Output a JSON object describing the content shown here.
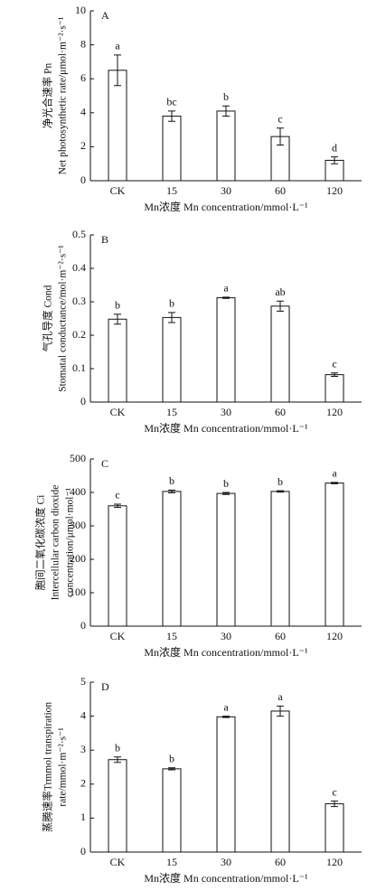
{
  "chart_data": [
    {
      "type": "bar",
      "panel": "A",
      "ylabel": [
        "净光合速率 Pn",
        "Net photosynthetic rate/μmol·m⁻²·s⁻¹"
      ],
      "xlabel": "Mn浓度 Mn concentration/mmol·L⁻¹",
      "categories": [
        "CK",
        "15",
        "30",
        "60",
        "120"
      ],
      "values": [
        6.5,
        3.8,
        4.1,
        2.6,
        1.2
      ],
      "errors": [
        0.9,
        0.3,
        0.3,
        0.5,
        0.2
      ],
      "letters": [
        "a",
        "bc",
        "b",
        "c",
        "d"
      ],
      "ylim": [
        0,
        10
      ],
      "yticks": [
        0,
        2,
        4,
        6,
        8,
        10
      ],
      "color": "#ffffff"
    },
    {
      "type": "bar",
      "panel": "B",
      "ylabel": [
        "气孔导度 Cond",
        "Stomatal conductance/mol·m⁻²·s⁻¹"
      ],
      "xlabel": "Mn浓度 Mn concentration/mmol·L⁻¹",
      "categories": [
        "CK",
        "15",
        "30",
        "60",
        "120"
      ],
      "values": [
        0.248,
        0.253,
        0.312,
        0.287,
        0.082
      ],
      "errors": [
        0.015,
        0.015,
        0.002,
        0.015,
        0.005
      ],
      "letters": [
        "b",
        "b",
        "a",
        "ab",
        "c"
      ],
      "ylim": [
        0,
        0.5
      ],
      "yticks": [
        0,
        0.1,
        0.2,
        0.3,
        0.4,
        0.5
      ],
      "color": "#ffffff"
    },
    {
      "type": "bar",
      "panel": "C",
      "ylabel": [
        "胞间二氧化碳浓度 Ci",
        "Intercellular carbon dioxide",
        "concentration/μmol·mol⁻¹"
      ],
      "xlabel": "Mn浓度 Mn concentration/mmol·L⁻¹",
      "categories": [
        "CK",
        "15",
        "30",
        "60",
        "120"
      ],
      "values": [
        360,
        403,
        397,
        403,
        428
      ],
      "errors": [
        5,
        4,
        3,
        2,
        2
      ],
      "letters": [
        "c",
        "b",
        "b",
        "b",
        "a"
      ],
      "ylim": [
        0,
        500
      ],
      "yticks": [
        0,
        100,
        200,
        300,
        400,
        500
      ],
      "color": "#ffffff"
    },
    {
      "type": "bar",
      "panel": "D",
      "ylabel": [
        "蒸腾速率Trmmol transpiration",
        "rate/mmol·m⁻²·s⁻¹"
      ],
      "xlabel": "Mn浓度 Mn concentration/mmol·L⁻¹",
      "categories": [
        "CK",
        "15",
        "30",
        "60",
        "120"
      ],
      "values": [
        2.72,
        2.45,
        3.98,
        4.15,
        1.42
      ],
      "errors": [
        0.08,
        0.03,
        0.02,
        0.15,
        0.08
      ],
      "letters": [
        "b",
        "b",
        "a",
        "a",
        "c"
      ],
      "ylim": [
        0,
        5
      ],
      "yticks": [
        0,
        1,
        2,
        3,
        4,
        5
      ],
      "color": "#ffffff"
    }
  ]
}
